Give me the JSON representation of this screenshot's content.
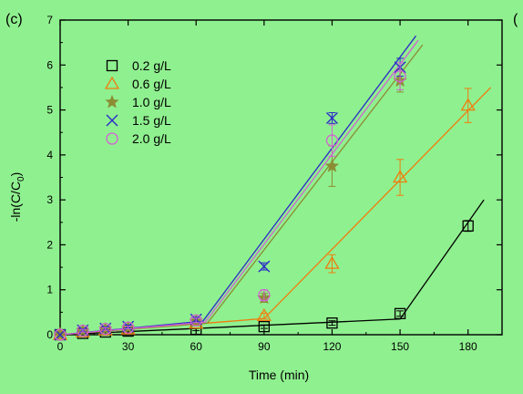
{
  "chart_data": {
    "type": "scatter",
    "panel_label": "(c)",
    "panel_label_cut": "(",
    "xlabel": "Time (min)",
    "ylabel": "-ln(C/C",
    "ylabel_subscript": "0",
    "ylabel_close": ")",
    "xlim": [
      0,
      195
    ],
    "ylim": [
      0,
      7
    ],
    "xticks": [
      0,
      30,
      60,
      90,
      120,
      150,
      180
    ],
    "yticks": [
      0,
      1,
      2,
      3,
      4,
      5,
      6,
      7
    ],
    "grid": false,
    "legend_position": "top-left",
    "series": [
      {
        "name": "0.2 g/L",
        "marker": "square",
        "color": "#000000",
        "x": [
          0,
          10,
          20,
          30,
          60,
          90,
          120,
          150,
          180
        ],
        "y": [
          0,
          0.03,
          0.06,
          0.08,
          0.12,
          0.18,
          0.26,
          0.47,
          2.42
        ],
        "err": [
          0,
          0.02,
          0.02,
          0.02,
          0.03,
          0.04,
          0.05,
          0.06,
          0.12
        ],
        "fit": [
          [
            0,
            0
          ],
          [
            150,
            0.35
          ],
          [
            187,
            3.0
          ]
        ]
      },
      {
        "name": "0.6 g/L",
        "marker": "triangle",
        "color": "#f07c0c",
        "x": [
          0,
          10,
          20,
          30,
          60,
          90,
          120,
          150,
          180
        ],
        "y": [
          0,
          0.06,
          0.1,
          0.12,
          0.25,
          0.42,
          1.58,
          3.5,
          5.1
        ],
        "err": [
          0,
          0.03,
          0.03,
          0.03,
          0.05,
          0.06,
          0.2,
          0.4,
          0.38
        ],
        "fit": [
          [
            0,
            0
          ],
          [
            90,
            0.36
          ],
          [
            190,
            5.5
          ]
        ]
      },
      {
        "name": "1.0 g/L",
        "marker": "star",
        "color": "#8c8c35",
        "x": [
          0,
          10,
          20,
          30,
          60,
          90,
          120,
          150
        ],
        "y": [
          0,
          0.08,
          0.12,
          0.15,
          0.3,
          0.82,
          3.75,
          5.65
        ],
        "err": [
          0,
          0.03,
          0.03,
          0.03,
          0.05,
          0.1,
          0.45,
          0.25
        ],
        "fit": [
          [
            0,
            0
          ],
          [
            65,
            0.26
          ],
          [
            160,
            6.45
          ]
        ]
      },
      {
        "name": "1.5 g/L",
        "marker": "cross",
        "color": "#2b2bc8",
        "x": [
          0,
          10,
          20,
          30,
          60,
          90,
          120,
          150
        ],
        "y": [
          0,
          0.1,
          0.14,
          0.18,
          0.34,
          1.52,
          4.82,
          5.95
        ],
        "err": [
          0,
          0.03,
          0.03,
          0.03,
          0.05,
          0.08,
          0.12,
          0.2
        ],
        "fit": [
          [
            0,
            0
          ],
          [
            63,
            0.3
          ],
          [
            157,
            6.65
          ]
        ]
      },
      {
        "name": "2.0 g/L",
        "marker": "circle",
        "color": "#d263d2",
        "x": [
          0,
          10,
          20,
          30,
          60,
          90,
          120,
          150
        ],
        "y": [
          0,
          0.09,
          0.13,
          0.16,
          0.32,
          0.88,
          4.32,
          5.75
        ],
        "err": [
          0,
          0.03,
          0.03,
          0.03,
          0.05,
          0.12,
          0.35,
          0.3
        ],
        "fit": [
          [
            0,
            0
          ],
          [
            64,
            0.28
          ],
          [
            158,
            6.55
          ]
        ]
      }
    ]
  }
}
